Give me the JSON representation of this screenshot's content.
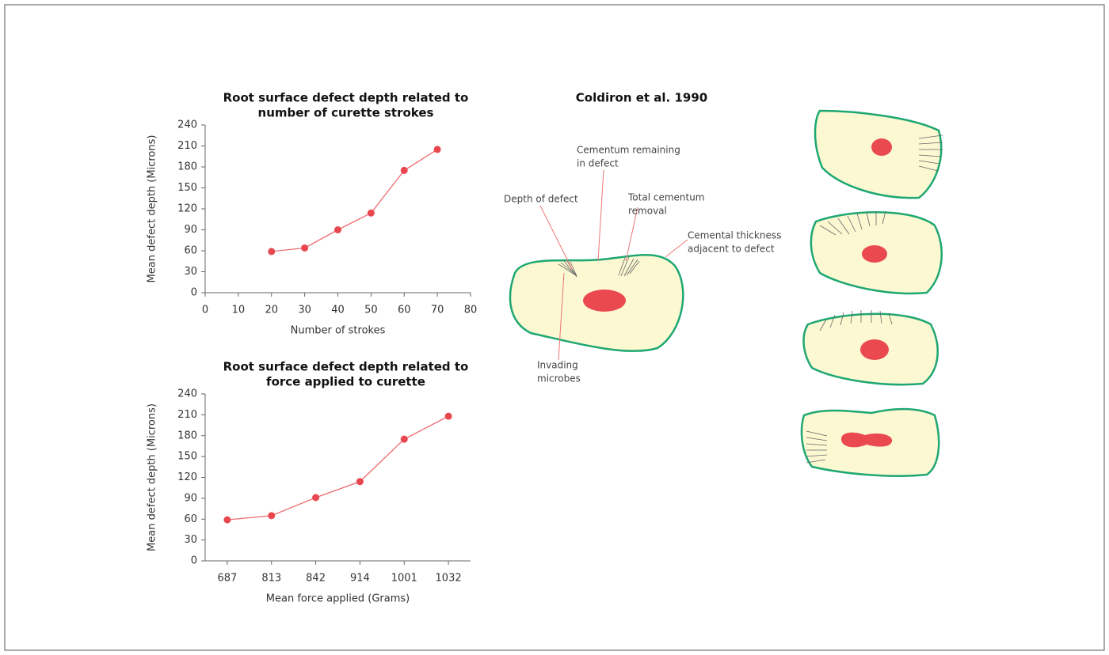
{
  "chart_data": [
    {
      "type": "line",
      "title": [
        "Root surface defect depth related to",
        "number of curette strokes"
      ],
      "x_label": "Number of strokes",
      "y_label": "Mean defect depth (Microns)",
      "x": [
        20,
        30,
        40,
        50,
        60,
        70
      ],
      "values": [
        59,
        64,
        90,
        114,
        175,
        205
      ],
      "color": "#e8474f",
      "xlim": [
        0,
        80
      ],
      "xticks": [
        0,
        10,
        20,
        30,
        40,
        50,
        60,
        70,
        80
      ],
      "ylim": [
        0,
        240
      ],
      "yticks": [
        0,
        30,
        60,
        90,
        120,
        150,
        180,
        210,
        240
      ]
    },
    {
      "type": "line",
      "title": [
        "Root surface defect depth related to",
        "force applied to curette"
      ],
      "x_label": "Mean force applied (Grams)",
      "y_label": "Mean defect depth (Microns)",
      "categories": [
        "687",
        "813",
        "842",
        "914",
        "1001",
        "1032"
      ],
      "values": [
        59,
        65,
        91,
        114,
        175,
        208
      ],
      "color": "#e8474f",
      "ylim": [
        0,
        240
      ],
      "yticks": [
        0,
        30,
        60,
        90,
        120,
        150,
        180,
        210,
        240
      ]
    }
  ],
  "diagram": {
    "title": "Coldiron et al. 1990",
    "labels": [
      [
        "Cementum remaining",
        "in defect"
      ],
      [
        "Depth of defect"
      ],
      [
        "Total cementum",
        "removal"
      ],
      [
        "Cemental thickness",
        "adjacent to defect"
      ],
      [
        "Invading",
        "microbes"
      ]
    ]
  }
}
